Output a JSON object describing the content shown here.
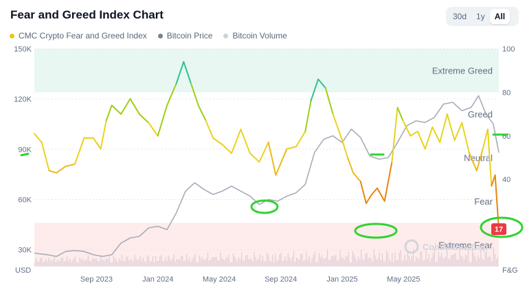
{
  "header": {
    "title": "Fear and Greed Index Chart"
  },
  "range_tabs": [
    "30d",
    "1y",
    "All"
  ],
  "active_range": "All",
  "legend": [
    {
      "label": "CMC Crypto Fear and Greed Index",
      "color": "#f0c419"
    },
    {
      "label": "Bitcoin Price",
      "color": "#7b8191"
    },
    {
      "label": "Bitcoin Volume",
      "color": "#cfd3da"
    }
  ],
  "watermark": "CoinMarketCap",
  "chart_data": {
    "type": "line",
    "title": "Fear and Greed Index Chart",
    "x_tick_labels": [
      "Sep 2023",
      "Jan 2024",
      "May 2024",
      "Sep 2024",
      "Jan 2025",
      "May 2025"
    ],
    "x_tick_positions": [
      2023.667,
      2024.0,
      2024.333,
      2024.667,
      2025.0,
      2025.333
    ],
    "x_range": [
      2023.33,
      2025.85
    ],
    "y_left": {
      "label": "USD",
      "range": [
        20000,
        150000
      ],
      "ticks": [
        30000,
        60000,
        90000,
        120000,
        150000
      ],
      "tick_labels": [
        "30K",
        "60K",
        "90K",
        "120K",
        "150K"
      ]
    },
    "y_right": {
      "label": "F&G",
      "range": [
        0,
        100
      ],
      "ticks": [
        40,
        60,
        80,
        100
      ],
      "tick_labels": [
        "40",
        "60",
        "80",
        "100"
      ]
    },
    "zones": [
      {
        "label": "Extreme Greed",
        "from": 80,
        "to": 100,
        "color": "#e8f7f1"
      },
      {
        "label": "Greed",
        "from": 60,
        "to": 80
      },
      {
        "label": "Neutral",
        "from": 40,
        "to": 60
      },
      {
        "label": "Fear",
        "from": 20,
        "to": 40
      },
      {
        "label": "Extreme Fear",
        "from": 0,
        "to": 20,
        "color": "#fdeceb"
      }
    ],
    "series": [
      {
        "name": "CMC Crypto Fear and Greed Index",
        "axis": "right",
        "x": [
          2023.33,
          2023.37,
          2023.41,
          2023.45,
          2023.5,
          2023.55,
          2023.6,
          2023.65,
          2023.69,
          2023.72,
          2023.75,
          2023.8,
          2023.85,
          2023.9,
          2023.95,
          2024.0,
          2024.05,
          2024.1,
          2024.14,
          2024.18,
          2024.22,
          2024.26,
          2024.3,
          2024.35,
          2024.4,
          2024.45,
          2024.5,
          2024.55,
          2024.6,
          2024.64,
          2024.7,
          2024.75,
          2024.8,
          2024.83,
          2024.87,
          2024.91,
          2024.95,
          2025.0,
          2025.03,
          2025.06,
          2025.1,
          2025.13,
          2025.16,
          2025.19,
          2025.23,
          2025.27,
          2025.3,
          2025.33,
          2025.37,
          2025.41,
          2025.45,
          2025.49,
          2025.53,
          2025.57,
          2025.61,
          2025.65,
          2025.69,
          2025.73,
          2025.76,
          2025.79,
          2025.81,
          2025.83,
          2025.85
        ],
        "values": [
          61,
          57,
          44,
          43,
          46,
          47,
          59,
          59,
          54,
          67,
          74,
          70,
          77,
          70,
          66,
          60,
          74,
          84,
          94,
          84,
          74,
          67,
          59,
          56,
          52,
          63,
          52,
          48,
          57,
          42,
          54,
          55,
          62,
          76,
          86,
          82,
          70,
          58,
          50,
          43,
          39,
          29,
          33,
          36,
          30,
          48,
          73,
          67,
          60,
          62,
          54,
          64,
          57,
          70,
          58,
          66,
          52,
          44,
          53,
          63,
          37,
          42,
          17
        ]
      },
      {
        "name": "Bitcoin Price",
        "axis": "left",
        "x": [
          2023.33,
          2023.4,
          2023.45,
          2023.5,
          2023.55,
          2023.6,
          2023.65,
          2023.7,
          2023.75,
          2023.8,
          2023.85,
          2023.9,
          2023.95,
          2024.0,
          2024.05,
          2024.1,
          2024.15,
          2024.2,
          2024.25,
          2024.3,
          2024.35,
          2024.4,
          2024.45,
          2024.5,
          2024.55,
          2024.6,
          2024.65,
          2024.7,
          2024.75,
          2024.8,
          2024.85,
          2024.9,
          2024.95,
          2025.0,
          2025.05,
          2025.1,
          2025.15,
          2025.2,
          2025.25,
          2025.3,
          2025.35,
          2025.4,
          2025.45,
          2025.5,
          2025.55,
          2025.6,
          2025.65,
          2025.7,
          2025.74,
          2025.78,
          2025.82,
          2025.85
        ],
        "values": [
          28000,
          27000,
          26000,
          29000,
          29500,
          29000,
          27000,
          26000,
          27000,
          34000,
          37000,
          38000,
          43000,
          44000,
          42000,
          52000,
          65000,
          70000,
          66000,
          63000,
          65000,
          68000,
          65000,
          62000,
          57000,
          60000,
          59000,
          62000,
          64000,
          69000,
          88000,
          96000,
          98000,
          94000,
          102000,
          97000,
          86000,
          84000,
          85000,
          94000,
          104000,
          107000,
          106000,
          109000,
          117000,
          118000,
          113000,
          115000,
          122000,
          111000,
          105000,
          88000
        ]
      },
      {
        "name": "Bitcoin Volume",
        "axis": "hidden",
        "note": "volume bars shown along the bottom of the plot"
      }
    ],
    "current_value": 17
  },
  "axes": {
    "left_label": "USD",
    "right_label": "F&G",
    "left_ticks": [
      "30K",
      "60K",
      "90K",
      "120K",
      "150K"
    ],
    "right_ticks": [
      "40",
      "60",
      "80",
      "100"
    ],
    "x_ticks": [
      "Sep 2023",
      "Jan 2024",
      "May 2024",
      "Sep 2024",
      "Jan 2025",
      "May 2025"
    ]
  },
  "zone_labels": {
    "extreme_greed": "Extreme Greed",
    "greed": "Greed",
    "neutral": "Neutral",
    "fear": "Fear",
    "extreme_fear": "Extreme Fear"
  },
  "current_badge": "17"
}
